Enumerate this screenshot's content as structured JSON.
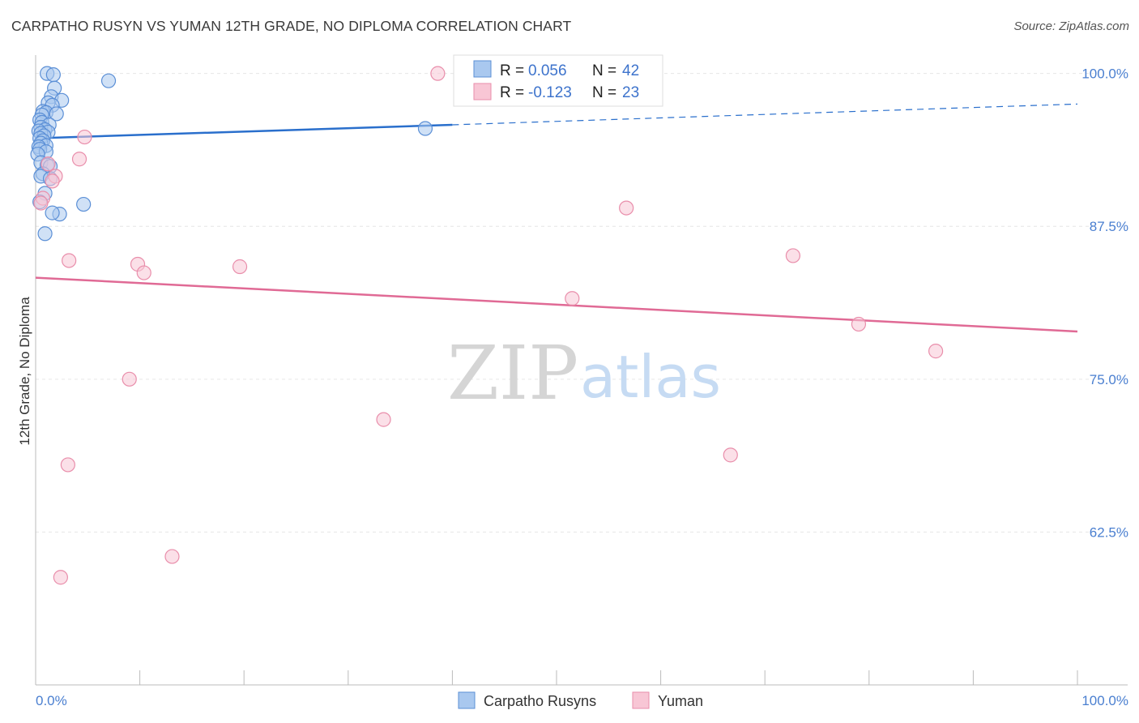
{
  "title": "CARPATHO RUSYN VS YUMAN 12TH GRADE, NO DIPLOMA CORRELATION CHART",
  "source": "Source: ZipAtlas.com",
  "watermark": {
    "zip": "ZIP",
    "atlas": "atlas"
  },
  "colors": {
    "blue_fill": "#a9c8ef",
    "blue_stroke": "#5b8fd6",
    "blue_line": "#2a6fcc",
    "pink_fill": "#f8c6d5",
    "pink_stroke": "#e98eab",
    "pink_line": "#e06a95",
    "grid": "#e6e6e6",
    "axis": "#bbbbbb"
  },
  "legend": {
    "blue": {
      "r_label": "R =",
      "r_value": "0.056",
      "n_label": "N =",
      "n_value": "42"
    },
    "pink": {
      "r_label": "R =",
      "r_value": "-0.123",
      "n_label": "N =",
      "n_value": "23"
    }
  },
  "chart_data": {
    "type": "scatter",
    "title": "CARPATHO RUSYN VS YUMAN 12TH GRADE, NO DIPLOMA CORRELATION CHART",
    "xlabel": "",
    "ylabel": "12th Grade, No Diploma",
    "xlim": [
      0,
      100
    ],
    "ylim": [
      50,
      101.5
    ],
    "y_ticks": [
      {
        "value": 100,
        "label": "100.0%"
      },
      {
        "value": 87.5,
        "label": "87.5%"
      },
      {
        "value": 75,
        "label": "75.0%"
      },
      {
        "value": 62.5,
        "label": "62.5%"
      }
    ],
    "x_tick_labels": [
      {
        "value": 0,
        "label": "0.0%"
      },
      {
        "value": 100,
        "label": "100.0%"
      }
    ],
    "x_minor_ticks": [
      0,
      10,
      20,
      30,
      40,
      50,
      60,
      70,
      80,
      90,
      100
    ],
    "series": [
      {
        "name": "Carpatho Rusyns",
        "color": "blue",
        "points": [
          [
            1.1,
            100.0
          ],
          [
            1.7,
            99.9
          ],
          [
            7.0,
            99.4
          ],
          [
            1.8,
            98.8
          ],
          [
            1.5,
            98.1
          ],
          [
            2.5,
            97.8
          ],
          [
            1.2,
            97.6
          ],
          [
            1.6,
            97.4
          ],
          [
            0.7,
            96.9
          ],
          [
            1.0,
            96.8
          ],
          [
            2.0,
            96.7
          ],
          [
            0.6,
            96.6
          ],
          [
            0.4,
            96.2
          ],
          [
            0.6,
            96.0
          ],
          [
            1.3,
            95.8
          ],
          [
            0.5,
            95.6
          ],
          [
            0.9,
            95.4
          ],
          [
            0.3,
            95.3
          ],
          [
            1.2,
            95.2
          ],
          [
            0.5,
            95.1
          ],
          [
            0.8,
            94.9
          ],
          [
            0.4,
            94.7
          ],
          [
            0.7,
            94.5
          ],
          [
            0.5,
            94.3
          ],
          [
            1.0,
            94.1
          ],
          [
            0.3,
            94.0
          ],
          [
            0.4,
            93.8
          ],
          [
            1.0,
            93.6
          ],
          [
            0.2,
            93.4
          ],
          [
            0.5,
            92.7
          ],
          [
            1.1,
            92.5
          ],
          [
            1.4,
            92.4
          ],
          [
            0.7,
            91.8
          ],
          [
            0.5,
            91.6
          ],
          [
            1.4,
            91.4
          ],
          [
            0.9,
            90.2
          ],
          [
            0.4,
            89.5
          ],
          [
            4.6,
            89.3
          ],
          [
            2.3,
            88.5
          ],
          [
            1.6,
            88.6
          ],
          [
            0.9,
            86.9
          ],
          [
            37.4,
            95.5
          ]
        ],
        "trend": {
          "x": [
            0,
            40
          ],
          "y": [
            94.7,
            95.8
          ]
        },
        "trend_ext": {
          "x": [
            40,
            100
          ],
          "y": [
            95.8,
            97.5
          ]
        }
      },
      {
        "name": "Yuman",
        "color": "pink",
        "points": [
          [
            38.6,
            100.0
          ],
          [
            4.7,
            94.8
          ],
          [
            4.2,
            93.0
          ],
          [
            1.2,
            92.6
          ],
          [
            1.9,
            91.6
          ],
          [
            1.6,
            91.2
          ],
          [
            0.7,
            89.8
          ],
          [
            0.5,
            89.4
          ],
          [
            56.7,
            89.0
          ],
          [
            72.7,
            85.1
          ],
          [
            3.2,
            84.7
          ],
          [
            9.8,
            84.4
          ],
          [
            19.6,
            84.2
          ],
          [
            10.4,
            83.7
          ],
          [
            51.5,
            81.6
          ],
          [
            79.0,
            79.5
          ],
          [
            86.4,
            77.3
          ],
          [
            9.0,
            75.0
          ],
          [
            33.4,
            71.7
          ],
          [
            3.1,
            68.0
          ],
          [
            66.7,
            68.8
          ],
          [
            13.1,
            60.5
          ],
          [
            2.4,
            58.8
          ]
        ],
        "trend": {
          "x": [
            0,
            100
          ],
          "y": [
            83.3,
            78.9
          ]
        }
      }
    ]
  },
  "bottom_legend": [
    {
      "label": "Carpatho Rusyns",
      "color": "blue"
    },
    {
      "label": "Yuman",
      "color": "pink"
    }
  ]
}
